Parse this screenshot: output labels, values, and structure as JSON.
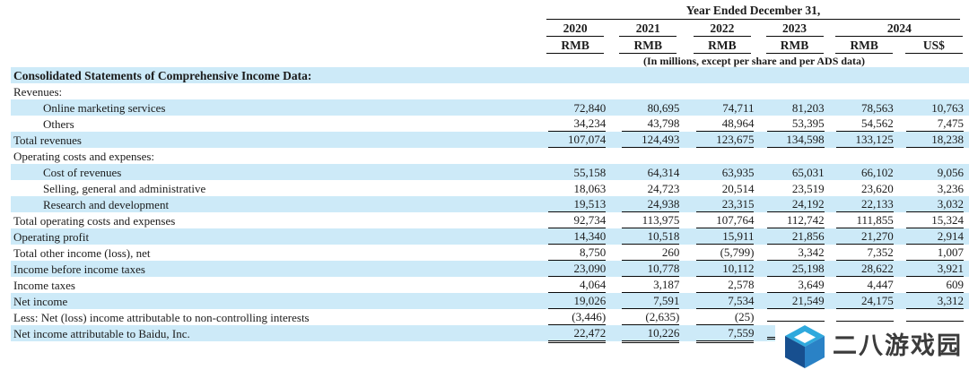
{
  "table": {
    "header": {
      "year_ended_label": "Year Ended December 31,",
      "years": [
        "2020",
        "2021",
        "2022",
        "2023",
        "2024"
      ],
      "currencies": [
        "RMB",
        "RMB",
        "RMB",
        "RMB",
        "RMB",
        "US$"
      ],
      "note": "(In millions, except per share and per ADS data)"
    },
    "section_title": "Consolidated Statements of Comprehensive Income Data:",
    "rows": [
      {
        "label": "Consolidated Statements of Comprehensive Income Data:",
        "indent": 0,
        "bold": true,
        "shade": true,
        "underline": "none",
        "values": [
          "",
          "",
          "",
          "",
          "",
          ""
        ]
      },
      {
        "label": "Revenues:",
        "indent": 0,
        "bold": false,
        "shade": false,
        "underline": "none",
        "values": [
          "",
          "",
          "",
          "",
          "",
          ""
        ]
      },
      {
        "label": "Online marketing services",
        "indent": 1,
        "bold": false,
        "shade": true,
        "underline": "none",
        "values": [
          "72,840",
          "80,695",
          "74,711",
          "81,203",
          "78,563",
          "10,763"
        ]
      },
      {
        "label": "Others",
        "indent": 1,
        "bold": false,
        "shade": false,
        "underline": "single",
        "values": [
          "34,234",
          "43,798",
          "48,964",
          "53,395",
          "54,562",
          "7,475"
        ]
      },
      {
        "label": "Total revenues",
        "indent": 0,
        "bold": false,
        "shade": true,
        "underline": "single",
        "values": [
          "107,074",
          "124,493",
          "123,675",
          "134,598",
          "133,125",
          "18,238"
        ]
      },
      {
        "label": "Operating costs and expenses:",
        "indent": 0,
        "bold": false,
        "shade": false,
        "underline": "none",
        "values": [
          "",
          "",
          "",
          "",
          "",
          ""
        ]
      },
      {
        "label": "Cost of revenues",
        "indent": 1,
        "bold": false,
        "shade": true,
        "underline": "none",
        "values": [
          "55,158",
          "64,314",
          "63,935",
          "65,031",
          "66,102",
          "9,056"
        ]
      },
      {
        "label": "Selling, general and administrative",
        "indent": 1,
        "bold": false,
        "shade": false,
        "underline": "none",
        "values": [
          "18,063",
          "24,723",
          "20,514",
          "23,519",
          "23,620",
          "3,236"
        ]
      },
      {
        "label": "Research and development",
        "indent": 1,
        "bold": false,
        "shade": true,
        "underline": "single",
        "values": [
          "19,513",
          "24,938",
          "23,315",
          "24,192",
          "22,133",
          "3,032"
        ]
      },
      {
        "label": "Total operating costs and expenses",
        "indent": 0,
        "bold": false,
        "shade": false,
        "underline": "single",
        "values": [
          "92,734",
          "113,975",
          "107,764",
          "112,742",
          "111,855",
          "15,324"
        ]
      },
      {
        "label": "Operating profit",
        "indent": 0,
        "bold": false,
        "shade": true,
        "underline": "single",
        "values": [
          "14,340",
          "10,518",
          "15,911",
          "21,856",
          "21,270",
          "2,914"
        ]
      },
      {
        "label": "Total other income (loss), net",
        "indent": 0,
        "bold": false,
        "shade": false,
        "underline": "single",
        "values": [
          "8,750",
          "260",
          "(5,799)",
          "3,342",
          "7,352",
          "1,007"
        ]
      },
      {
        "label": "Income before income taxes",
        "indent": 0,
        "bold": false,
        "shade": true,
        "underline": "single",
        "values": [
          "23,090",
          "10,778",
          "10,112",
          "25,198",
          "28,622",
          "3,921"
        ]
      },
      {
        "label": "Income taxes",
        "indent": 0,
        "bold": false,
        "shade": false,
        "underline": "single",
        "values": [
          "4,064",
          "3,187",
          "2,578",
          "3,649",
          "4,447",
          "609"
        ]
      },
      {
        "label": "Net income",
        "indent": 0,
        "bold": false,
        "shade": true,
        "underline": "single",
        "values": [
          "19,026",
          "7,591",
          "7,534",
          "21,549",
          "24,175",
          "3,312"
        ]
      },
      {
        "label": "Less: Net (loss) income attributable to non-controlling interests",
        "indent": 0,
        "bold": false,
        "shade": false,
        "underline": "single",
        "values": [
          "(3,446)",
          "(2,635)",
          "(25)",
          "",
          "",
          ""
        ]
      },
      {
        "label": "Net income attributable to Baidu, Inc.",
        "indent": 0,
        "bold": false,
        "shade": true,
        "underline": "double",
        "values": [
          "22,472",
          "10,226",
          "7,559",
          "",
          "",
          ""
        ]
      }
    ]
  },
  "watermark": {
    "text": "二八游戏园"
  },
  "colors": {
    "stripe": "#cdeaf8",
    "rule": "#0a0a0a",
    "cube_top": "#2fa9dd",
    "cube_left": "#174f8f",
    "cube_right": "#2a82c6",
    "watermark_text": "#3b3b3b"
  }
}
